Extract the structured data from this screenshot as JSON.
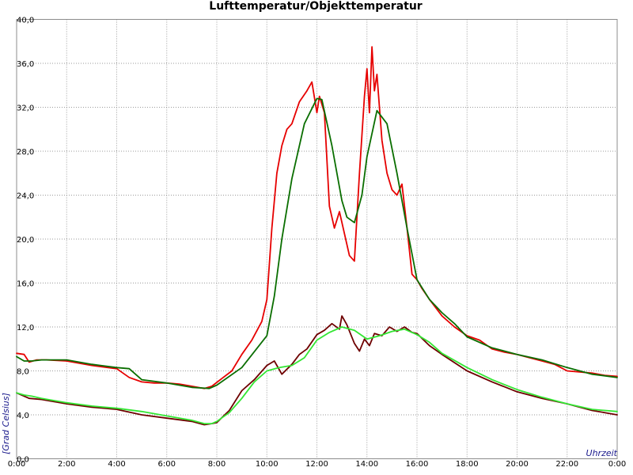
{
  "chart_data": {
    "type": "line",
    "title": "Lufttemperatur/Objekttemperatur",
    "xlabel": "Uhrzeit",
    "ylabel": "[Grad Celsius]",
    "xlim": [
      0,
      24
    ],
    "ylim": [
      0,
      40
    ],
    "x_tick_labels": [
      "0:00",
      "2:00",
      "4:00",
      "6:00",
      "8:00",
      "10:00",
      "12:00",
      "14:00",
      "16:00",
      "18:00",
      "20:00",
      "22:00",
      "0:00"
    ],
    "x_tick_values": [
      0,
      2,
      4,
      6,
      8,
      10,
      12,
      14,
      16,
      18,
      20,
      22,
      24
    ],
    "y_tick_labels": [
      "0,0",
      "4,0",
      "8,0",
      "12,0",
      "16,0",
      "20,0",
      "24,0",
      "28,0",
      "32,0",
      "36,0",
      "40,0"
    ],
    "y_tick_values": [
      0,
      4,
      8,
      12,
      16,
      20,
      24,
      28,
      32,
      36,
      40
    ],
    "grid": true,
    "series": [
      {
        "color": "#e60000",
        "x": [
          0,
          0.3,
          0.5,
          0.8,
          1.2,
          2,
          3,
          4,
          4.5,
          5,
          5.5,
          6,
          6.5,
          7,
          7.5,
          7.8,
          8.2,
          8.6,
          9,
          9.4,
          9.8,
          10,
          10.2,
          10.4,
          10.6,
          10.8,
          11,
          11.3,
          11.6,
          11.8,
          12,
          12.1,
          12.3,
          12.5,
          12.7,
          12.9,
          13.1,
          13.3,
          13.5,
          13.7,
          13.9,
          14,
          14.1,
          14.2,
          14.3,
          14.4,
          14.6,
          14.8,
          15,
          15.2,
          15.4,
          15.6,
          15.8,
          16,
          16.2,
          16.5,
          17,
          17.5,
          18,
          18.5,
          19,
          19.5,
          20,
          20.5,
          21,
          21.5,
          22,
          22.5,
          23,
          23.5,
          24
        ],
        "y": [
          9.6,
          9.5,
          8.8,
          9.0,
          9.0,
          8.9,
          8.5,
          8.2,
          7.4,
          7.0,
          6.9,
          6.9,
          6.8,
          6.6,
          6.4,
          6.6,
          7.3,
          8.0,
          9.5,
          10.8,
          12.5,
          14.5,
          21.0,
          26.0,
          28.5,
          30.0,
          30.5,
          32.5,
          33.5,
          34.3,
          31.5,
          33.0,
          31.5,
          23.0,
          21.0,
          22.5,
          20.5,
          18.5,
          18.0,
          26.0,
          33.0,
          35.5,
          31.5,
          37.5,
          33.5,
          35.0,
          29.0,
          26.0,
          24.5,
          24.0,
          25.0,
          21.0,
          16.8,
          16.3,
          15.5,
          14.5,
          13.0,
          12.0,
          11.2,
          10.8,
          10.0,
          9.7,
          9.5,
          9.2,
          8.9,
          8.6,
          8.0,
          7.9,
          7.8,
          7.6,
          7.5
        ]
      },
      {
        "color": "#0a6e00",
        "x": [
          0,
          0.3,
          0.6,
          1,
          2,
          3,
          4,
          4.5,
          5,
          6,
          7,
          7.7,
          8,
          9,
          10,
          10.3,
          10.6,
          11,
          11.5,
          12,
          12.2,
          12.6,
          13,
          13.2,
          13.5,
          13.8,
          14,
          14.4,
          14.8,
          15.2,
          15.6,
          16,
          16.5,
          17,
          17.5,
          18,
          19,
          20,
          21,
          22,
          23,
          24
        ],
        "y": [
          9.3,
          8.9,
          8.9,
          9.0,
          9.0,
          8.6,
          8.3,
          8.2,
          7.2,
          6.9,
          6.5,
          6.4,
          6.7,
          8.3,
          11.2,
          14.8,
          20.0,
          25.5,
          30.5,
          32.8,
          32.7,
          28.5,
          23.5,
          22.0,
          21.5,
          24.0,
          27.5,
          31.7,
          30.5,
          26.0,
          21.0,
          16.3,
          14.5,
          13.3,
          12.3,
          11.1,
          10.1,
          9.5,
          9.0,
          8.3,
          7.7,
          7.4
        ]
      },
      {
        "color": "#6e0000",
        "x": [
          0,
          0.3,
          0.5,
          1,
          2,
          3,
          4,
          5,
          6,
          7,
          7.5,
          7.8,
          8,
          8.5,
          9,
          9.5,
          10,
          10.3,
          10.6,
          11,
          11.3,
          11.6,
          12,
          12.3,
          12.6,
          12.9,
          13,
          13.2,
          13.5,
          13.7,
          13.9,
          14.1,
          14.3,
          14.6,
          14.9,
          15.2,
          15.5,
          15.8,
          16,
          16.5,
          17,
          18,
          19,
          20,
          21,
          22,
          23,
          23.5,
          24
        ],
        "y": [
          6.0,
          5.7,
          5.5,
          5.4,
          5.0,
          4.7,
          4.5,
          4.0,
          3.7,
          3.4,
          3.1,
          3.2,
          3.3,
          4.4,
          6.2,
          7.2,
          8.5,
          8.9,
          7.7,
          8.6,
          9.5,
          10.0,
          11.3,
          11.7,
          12.3,
          11.8,
          13.0,
          12.2,
          10.5,
          9.8,
          10.9,
          10.3,
          11.4,
          11.2,
          12.0,
          11.6,
          12.0,
          11.5,
          11.4,
          10.3,
          9.5,
          8.0,
          7.0,
          6.1,
          5.5,
          5.0,
          4.4,
          4.2,
          4.0
        ]
      },
      {
        "color": "#33e633",
        "x": [
          0,
          0.3,
          0.6,
          1,
          2,
          3,
          4,
          5,
          6,
          7,
          7.5,
          7.8,
          8,
          8.5,
          9,
          9.5,
          10,
          10.5,
          11,
          11.5,
          12,
          12.5,
          13,
          13.5,
          14,
          14.5,
          15,
          15.5,
          16,
          16.5,
          17,
          18,
          19,
          20,
          21,
          22,
          23,
          24
        ],
        "y": [
          6.0,
          5.8,
          5.7,
          5.5,
          5.1,
          4.8,
          4.6,
          4.3,
          3.9,
          3.5,
          3.2,
          3.2,
          3.4,
          4.2,
          5.5,
          7.0,
          8.0,
          8.3,
          8.5,
          9.2,
          10.8,
          11.5,
          12.0,
          11.7,
          10.9,
          11.2,
          11.6,
          11.8,
          11.3,
          10.6,
          9.6,
          8.3,
          7.2,
          6.3,
          5.6,
          5.0,
          4.5,
          4.3
        ]
      }
    ]
  }
}
